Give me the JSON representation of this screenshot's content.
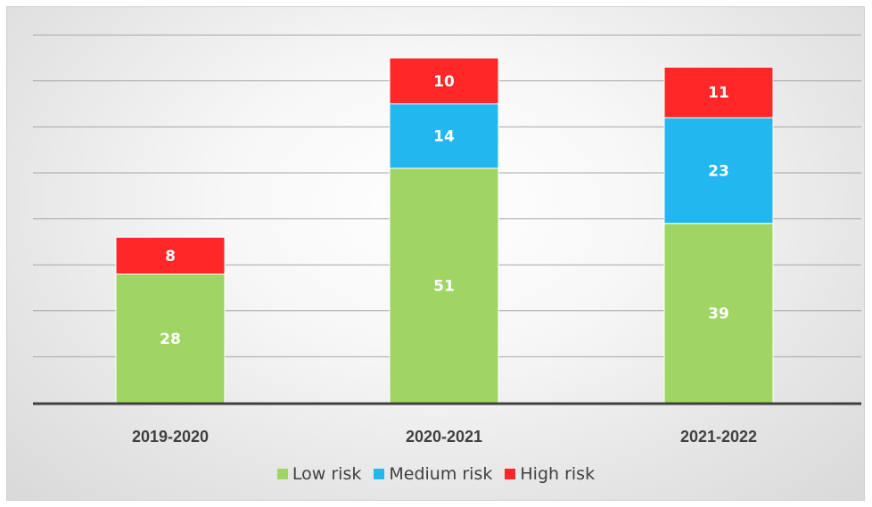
{
  "chart_data": {
    "type": "bar",
    "stacked": true,
    "categories": [
      "2019-2020",
      "2020-2021",
      "2021-2022"
    ],
    "series": [
      {
        "name": "Low risk",
        "values": [
          28,
          51,
          39
        ],
        "color": "#9ed563"
      },
      {
        "name": "Medium risk",
        "values": [
          0,
          14,
          23
        ],
        "color": "#22b7ee"
      },
      {
        "name": "High risk",
        "values": [
          8,
          10,
          11
        ],
        "color": "#ff2727"
      }
    ],
    "ylim": [
      0,
      80
    ],
    "grid": true,
    "legend_position": "bottom"
  }
}
